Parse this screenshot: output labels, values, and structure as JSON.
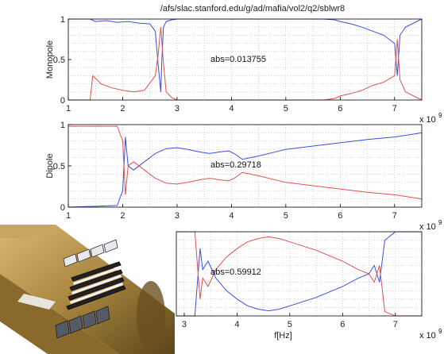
{
  "page": {
    "title": "/afs/slac.stanford.edu/g/ad/mafia/vol2/q2/sblwr8"
  },
  "chart_data": [
    {
      "type": "line",
      "ylabel": "Monopole",
      "xlabel": "",
      "annotation": "abs=0.013755",
      "x_exponent_label": "x 10",
      "x_exponent": "9",
      "xlim": [
        1,
        7.5
      ],
      "ylim": [
        0,
        1
      ],
      "xticks": [
        1,
        2,
        3,
        4,
        5,
        6,
        7
      ],
      "yticks": [
        0,
        0.5,
        1
      ],
      "grid": true,
      "series": [
        {
          "color": "#3a4ee0",
          "x": [
            1,
            1.4,
            1.5,
            1.7,
            1.9,
            2.1,
            2.3,
            2.5,
            2.6,
            2.65,
            2.7,
            2.72,
            2.75,
            2.8,
            2.9,
            3.0,
            3.5,
            4.0,
            5.0,
            5.7,
            5.9,
            6.0,
            6.2,
            6.4,
            6.6,
            6.8,
            7.0,
            7.05,
            7.1,
            7.2,
            7.5
          ],
          "y": [
            1,
            1,
            0.97,
            0.98,
            0.96,
            0.97,
            0.95,
            0.94,
            0.85,
            0.45,
            0.1,
            0.5,
            0.9,
            0.97,
            0.99,
            1,
            1,
            1,
            1,
            1,
            0.99,
            0.97,
            0.94,
            0.9,
            0.85,
            0.8,
            0.7,
            0.3,
            0.8,
            0.9,
            1
          ]
        },
        {
          "color": "#e05050",
          "x": [
            1,
            1.4,
            1.45,
            1.6,
            1.8,
            2.0,
            2.2,
            2.4,
            2.6,
            2.65,
            2.7,
            2.75,
            2.8,
            2.9,
            3.0,
            3.5,
            4.0,
            5.0,
            5.7,
            5.9,
            6.0,
            6.2,
            6.4,
            6.6,
            6.8,
            7.0,
            7.05,
            7.1,
            7.2,
            7.5
          ],
          "y": [
            0,
            0,
            0.3,
            0.2,
            0.15,
            0.12,
            0.1,
            0.12,
            0.3,
            0.55,
            0.9,
            0.45,
            0.1,
            0.03,
            0,
            0,
            0,
            0,
            0,
            0.02,
            0.05,
            0.08,
            0.12,
            0.18,
            0.22,
            0.3,
            0.75,
            0.25,
            0.1,
            0
          ]
        }
      ]
    },
    {
      "type": "line",
      "ylabel": "Dipole",
      "xlabel": "",
      "annotation": "abs=0.29718",
      "x_exponent_label": "x 10",
      "x_exponent": "9",
      "xlim": [
        1,
        7.5
      ],
      "ylim": [
        0,
        1
      ],
      "xticks": [
        1,
        2,
        3,
        4,
        5,
        6,
        7
      ],
      "yticks": [
        0,
        0.5,
        1
      ],
      "grid": true,
      "series": [
        {
          "color": "#3a4ee0",
          "x": [
            1,
            1.9,
            2.0,
            2.05,
            2.1,
            2.2,
            2.4,
            2.6,
            2.8,
            3.0,
            3.2,
            3.4,
            3.6,
            3.8,
            3.95,
            4.05,
            4.2,
            4.5,
            5.0,
            5.5,
            6.0,
            6.5,
            7.0,
            7.5
          ],
          "y": [
            0,
            0.02,
            0.2,
            0.85,
            0.5,
            0.45,
            0.55,
            0.65,
            0.71,
            0.72,
            0.7,
            0.67,
            0.65,
            0.67,
            0.68,
            0.65,
            0.58,
            0.62,
            0.7,
            0.74,
            0.78,
            0.82,
            0.85,
            0.9
          ]
        },
        {
          "color": "#e05050",
          "x": [
            1,
            1.9,
            2.0,
            2.05,
            2.1,
            2.2,
            2.4,
            2.6,
            2.8,
            3.0,
            3.2,
            3.4,
            3.6,
            3.8,
            3.95,
            4.05,
            4.2,
            4.5,
            5.0,
            5.5,
            6.0,
            6.5,
            7.0,
            7.5
          ],
          "y": [
            0.98,
            0.98,
            0.8,
            0.15,
            0.5,
            0.55,
            0.45,
            0.35,
            0.29,
            0.28,
            0.3,
            0.33,
            0.35,
            0.33,
            0.32,
            0.35,
            0.42,
            0.38,
            0.3,
            0.26,
            0.22,
            0.18,
            0.15,
            0.1
          ]
        }
      ]
    },
    {
      "type": "line",
      "ylabel": "",
      "xlabel": "f[Hz]",
      "annotation": "abs=0.59912",
      "x_exponent_label": "x 10",
      "x_exponent": "9",
      "xlim": [
        2.85,
        7.5
      ],
      "ylim": [
        0,
        1
      ],
      "xticks": [
        3,
        4,
        5,
        6,
        7
      ],
      "yticks": [],
      "grid": true,
      "series": [
        {
          "color": "#3a4ee0",
          "x": [
            2.85,
            3.2,
            3.3,
            3.35,
            3.45,
            3.6,
            3.8,
            4.0,
            4.2,
            4.4,
            4.6,
            4.8,
            5.0,
            5.5,
            6.0,
            6.3,
            6.5,
            6.6,
            6.7,
            6.8,
            7.0,
            7.5
          ],
          "y": [
            0,
            0,
            0.8,
            0.55,
            0.65,
            0.45,
            0.3,
            0.2,
            0.12,
            0.08,
            0.06,
            0.08,
            0.12,
            0.22,
            0.35,
            0.45,
            0.5,
            0.6,
            0.4,
            0.9,
            1,
            1
          ]
        },
        {
          "color": "#e05050",
          "x": [
            2.85,
            3.2,
            3.3,
            3.35,
            3.45,
            3.6,
            3.8,
            4.0,
            4.2,
            4.4,
            4.6,
            4.8,
            5.0,
            5.5,
            6.0,
            6.3,
            6.5,
            6.6,
            6.7,
            6.8,
            7.0,
            7.5
          ],
          "y": [
            1,
            1,
            0.2,
            0.45,
            0.35,
            0.55,
            0.7,
            0.8,
            0.88,
            0.92,
            0.94,
            0.92,
            0.88,
            0.78,
            0.65,
            0.55,
            0.5,
            0.4,
            0.6,
            0.05,
            0,
            0
          ]
        }
      ]
    }
  ]
}
